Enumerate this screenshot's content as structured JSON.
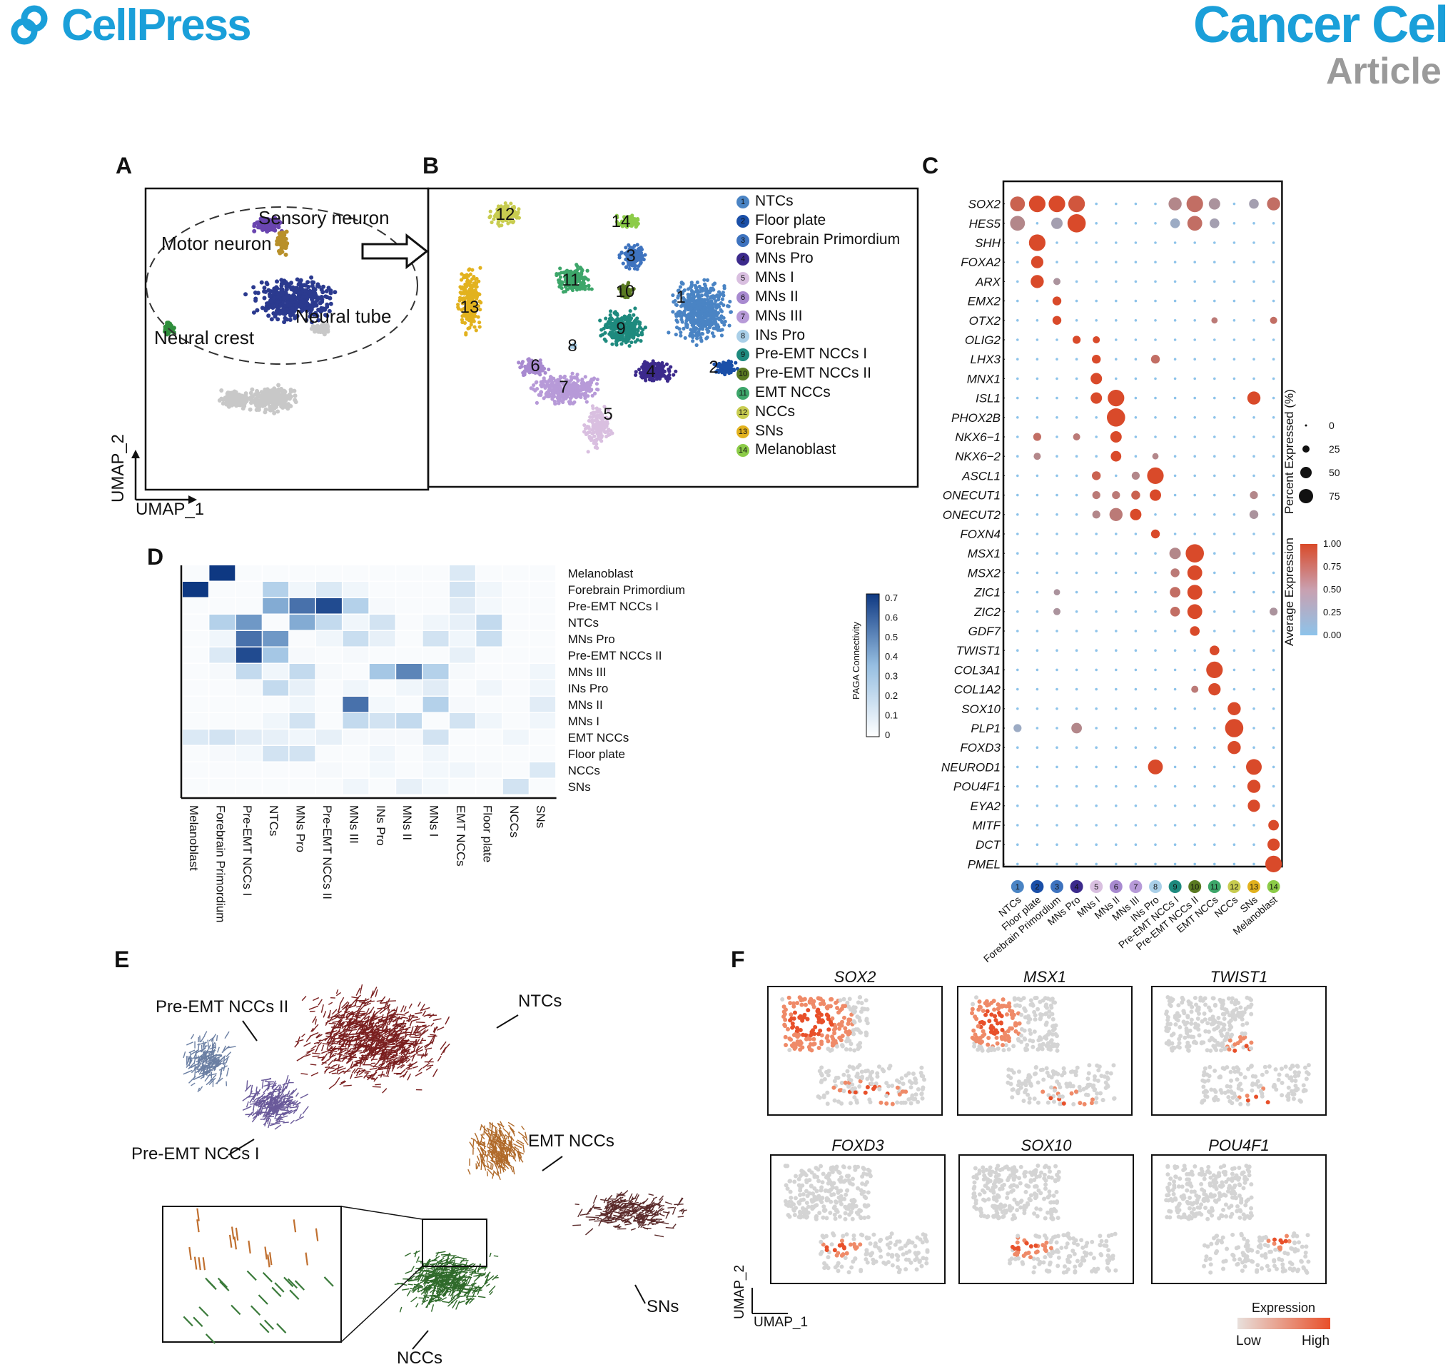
{
  "header": {
    "left_brand": "CellPress",
    "right_brand": "Cancer Cel",
    "right_sub": "Article",
    "brand_color": "#1a9fd9",
    "sub_color": "#9a9a9a"
  },
  "panel_labels": [
    "A",
    "B",
    "C",
    "D",
    "E",
    "F"
  ],
  "panelA": {
    "labels": [
      "Sensory neuron",
      "Motor neuron",
      "Neural tube",
      "Neural crest"
    ],
    "axis_x": "UMAP_1",
    "axis_y": "UMAP_2"
  },
  "panelB": {
    "cluster_numbers": [
      "12",
      "14",
      "3",
      "11",
      "10",
      "1",
      "13",
      "9",
      "8",
      "6",
      "7",
      "4",
      "2",
      "5"
    ],
    "legend": [
      {
        "n": "1",
        "label": "NTCs",
        "color": "#4a84c4"
      },
      {
        "n": "2",
        "label": "Floor plate",
        "color": "#1a4fa8"
      },
      {
        "n": "3",
        "label": "Forebrain Primordium",
        "color": "#3e73bf"
      },
      {
        "n": "4",
        "label": "MNs Pro",
        "color": "#3c2a8c"
      },
      {
        "n": "5",
        "label": "MNs I",
        "color": "#d9bfe0"
      },
      {
        "n": "6",
        "label": "MNs II",
        "color": "#a88ad0"
      },
      {
        "n": "7",
        "label": "MNs III",
        "color": "#b79ad8"
      },
      {
        "n": "8",
        "label": "INs Pro",
        "color": "#a9cfe8"
      },
      {
        "n": "9",
        "label": "Pre-EMT NCCs I",
        "color": "#1e8a7e"
      },
      {
        "n": "10",
        "label": "Pre-EMT NCCs II",
        "color": "#5a7a22"
      },
      {
        "n": "11",
        "label": "EMT NCCs",
        "color": "#3da66a"
      },
      {
        "n": "12",
        "label": "NCCs",
        "color": "#c8cc50"
      },
      {
        "n": "13",
        "label": "SNs",
        "color": "#e2b21e"
      },
      {
        "n": "14",
        "label": "Melanoblast",
        "color": "#8ccc48"
      }
    ]
  },
  "panelC": {
    "genes": [
      "SOX2",
      "HES5",
      "SHH",
      "FOXA2",
      "ARX",
      "EMX2",
      "OTX2",
      "OLIG2",
      "LHX3",
      "MNX1",
      "ISL1",
      "PHOX2B",
      "NKX6−1",
      "NKX6−2",
      "ASCL1",
      "ONECUT1",
      "ONECUT2",
      "FOXN4",
      "MSX1",
      "MSX2",
      "ZIC1",
      "ZIC2",
      "GDF7",
      "TWIST1",
      "COL3A1",
      "COL1A2",
      "SOX10",
      "PLP1",
      "FOXD3",
      "NEUROD1",
      "POU4F1",
      "EYA2",
      "MITF",
      "DCT",
      "PMEL"
    ],
    "clusters": [
      "NTCs",
      "Floor plate",
      "Forebrain Primordium",
      "MNs Pro",
      "MNs I",
      "MNs II",
      "MNs III",
      "INs Pro",
      "Pre-EMT NCCs I",
      "Pre-EMT NCCs II",
      "EMT NCCs",
      "NCCs",
      "SNs",
      "Melanoblast"
    ],
    "cluster_numbers": [
      "1",
      "2",
      "3",
      "4",
      "5",
      "6",
      "7",
      "8",
      "9",
      "10",
      "11",
      "12",
      "13",
      "14"
    ],
    "legend_pct_title": "Percent Expressed (%)",
    "legend_pct_values": [
      "0",
      "25",
      "50",
      "75"
    ],
    "legend_expr_title": "Average Expression",
    "legend_expr_values": [
      "1.00",
      "0.75",
      "0.50",
      "0.25",
      "0.00"
    ],
    "color_low": "#8dc3ea",
    "color_high": "#d94a2a"
  },
  "panelD": {
    "rows": [
      "Melanoblast",
      "Forebrain Primordium",
      "Pre-EMT NCCs I",
      "NTCs",
      "MNs Pro",
      "Pre-EMT NCCs II",
      "MNs III",
      "INs Pro",
      "MNs II",
      "MNs I",
      "EMT NCCs",
      "Floor plate",
      "NCCs",
      "SNs"
    ],
    "cols": [
      "Melanoblast",
      "Forebrain Primordium",
      "Pre-EMT NCCs I",
      "NTCs",
      "MNs Pro",
      "Pre-EMT NCCs II",
      "MNs III",
      "INs Pro",
      "MNs II",
      "MNs I",
      "EMT NCCs",
      "Floor plate",
      "NCCs",
      "SNs"
    ],
    "colorbar_title": "PAGA Connectivity",
    "colorbar_ticks": [
      "0.7",
      "0.6",
      "0.5",
      "0.4",
      "0.3",
      "0.2",
      "0.1",
      "0"
    ],
    "matrix": [
      [
        0,
        0.7,
        0,
        0,
        0,
        0,
        0,
        0,
        0,
        0,
        0.12,
        0,
        0,
        0
      ],
      [
        0.7,
        0,
        0,
        0.25,
        0.05,
        0.12,
        0.05,
        0,
        0,
        0,
        0.15,
        0.05,
        0,
        0
      ],
      [
        0,
        0,
        0.02,
        0.4,
        0.55,
        0.65,
        0.25,
        0.03,
        0.02,
        0.02,
        0.1,
        0.04,
        0,
        0
      ],
      [
        0,
        0.25,
        0.45,
        0.02,
        0.4,
        0.2,
        0.05,
        0.15,
        0.02,
        0.05,
        0.08,
        0.2,
        0,
        0
      ],
      [
        0,
        0.05,
        0.55,
        0.45,
        0,
        0.05,
        0.18,
        0.08,
        0.02,
        0.15,
        0.05,
        0.18,
        0,
        0
      ],
      [
        0,
        0.12,
        0.65,
        0.3,
        0.03,
        0,
        0.03,
        0.02,
        0,
        0.02,
        0.08,
        0.02,
        0,
        0
      ],
      [
        0,
        0.03,
        0.2,
        0.05,
        0.2,
        0.03,
        0,
        0.3,
        0.5,
        0.25,
        0.03,
        0.02,
        0.02,
        0.05
      ],
      [
        0,
        0,
        0.03,
        0.2,
        0.08,
        0.02,
        0.05,
        0,
        0.05,
        0.1,
        0.02,
        0.05,
        0,
        0.05
      ],
      [
        0,
        0,
        0.02,
        0.02,
        0.05,
        0,
        0.55,
        0.04,
        0,
        0.25,
        0.03,
        0,
        0,
        0.1
      ],
      [
        0,
        0.02,
        0.02,
        0.05,
        0.15,
        0.02,
        0.2,
        0.15,
        0.2,
        0,
        0.15,
        0.05,
        0,
        0.05
      ],
      [
        0.12,
        0.15,
        0.1,
        0.08,
        0.05,
        0.08,
        0.03,
        0.03,
        0.03,
        0.15,
        0,
        0.02,
        0.05,
        0
      ],
      [
        0,
        0.03,
        0.04,
        0.15,
        0.15,
        0.02,
        0.02,
        0.05,
        0,
        0.05,
        0.02,
        0,
        0.02,
        0
      ],
      [
        0,
        0,
        0,
        0,
        0,
        0.03,
        0,
        0.04,
        0.02,
        0.04,
        0.05,
        0.03,
        0,
        0.12
      ],
      [
        0,
        0,
        0,
        0,
        0,
        0,
        0.05,
        0.02,
        0.08,
        0.04,
        0,
        0,
        0.15,
        0
      ]
    ]
  },
  "panelE": {
    "labels": [
      "Pre-EMT NCCs II",
      "NTCs",
      "EMT NCCs",
      "Pre-EMT NCCs I",
      "SNs",
      "NCCs"
    ]
  },
  "panelF": {
    "genes": [
      "SOX2",
      "MSX1",
      "TWIST1",
      "FOXD3",
      "SOX10",
      "POU4F1"
    ],
    "axis_x": "UMAP_1",
    "axis_y": "UMAP_2",
    "legend_title": "Expression",
    "legend_low": "Low",
    "legend_high": "High"
  }
}
